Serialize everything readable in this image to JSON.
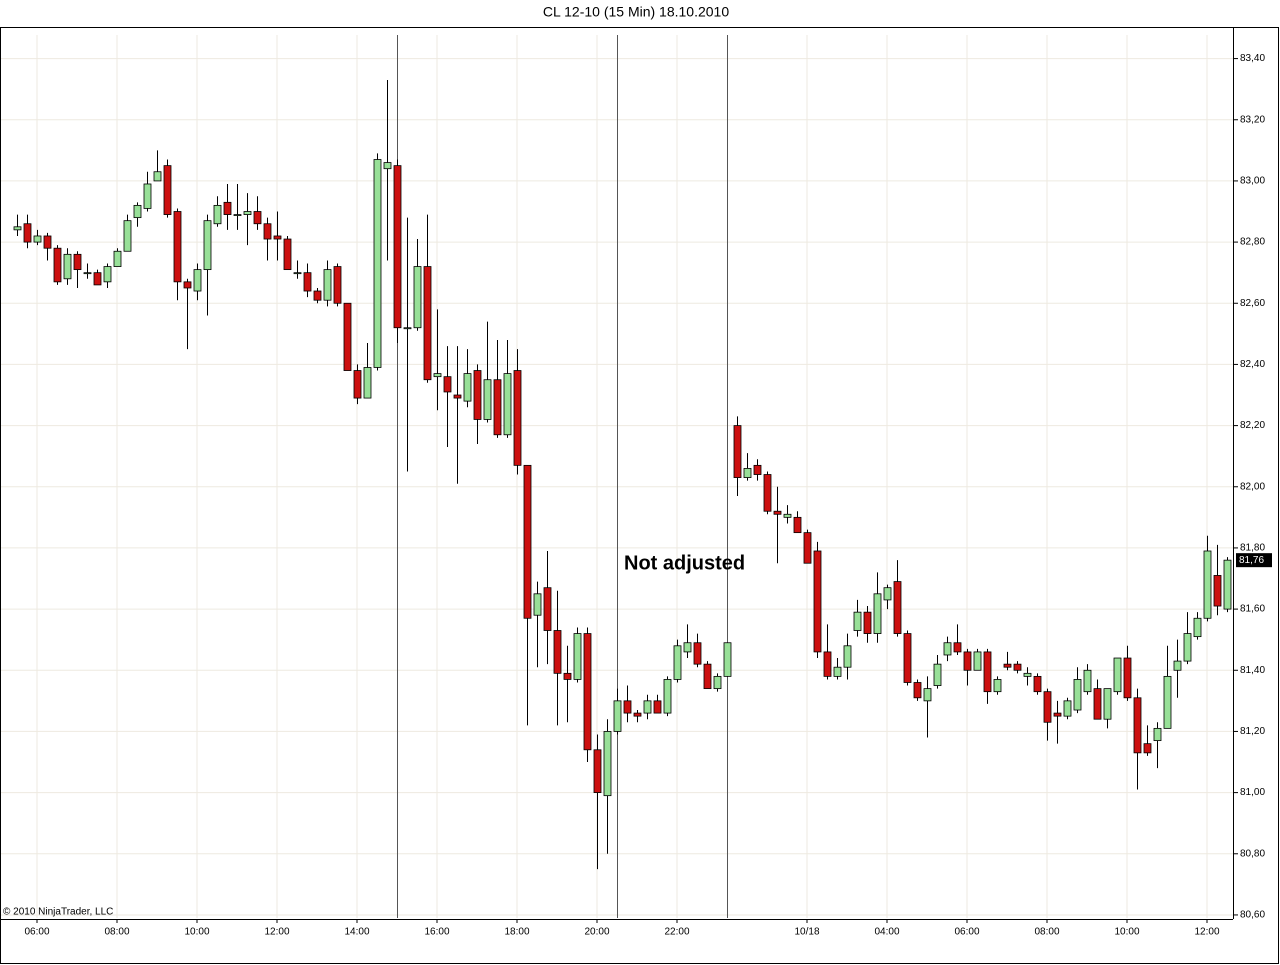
{
  "chart_data": {
    "type": "candlestick",
    "title": "CL 12-10 (15 Min)  18.10.2010",
    "annotation": "Not adjusted",
    "copyright": "© 2010 NinjaTrader, LLC",
    "up_color": "#98e098",
    "down_color": "#cc1010",
    "grid": true,
    "ylim": [
      80.59,
      83.5
    ],
    "yticks": [
      {
        "value": 80.6,
        "label": "80,60"
      },
      {
        "value": 80.8,
        "label": "80,80"
      },
      {
        "value": 81.0,
        "label": "81,00"
      },
      {
        "value": 81.2,
        "label": "81,20"
      },
      {
        "value": 81.4,
        "label": "81,40"
      },
      {
        "value": 81.6,
        "label": "81,60"
      },
      {
        "value": 81.8,
        "label": "81,80"
      },
      {
        "value": 82.0,
        "label": "82,00"
      },
      {
        "value": 82.2,
        "label": "82,20"
      },
      {
        "value": 82.4,
        "label": "82,40"
      },
      {
        "value": 82.6,
        "label": "82,60"
      },
      {
        "value": 82.8,
        "label": "82,80"
      },
      {
        "value": 83.0,
        "label": "83,00"
      },
      {
        "value": 83.2,
        "label": "83,20"
      },
      {
        "value": 83.4,
        "label": "83,40"
      }
    ],
    "last_price": {
      "value": 81.76,
      "label": "81,76"
    },
    "categories": [
      null,
      null,
      "06:00",
      null,
      null,
      null,
      null,
      null,
      null,
      null,
      "08:00",
      null,
      null,
      null,
      null,
      null,
      null,
      null,
      "10:00",
      null,
      null,
      null,
      null,
      null,
      null,
      null,
      "12:00",
      null,
      null,
      null,
      null,
      null,
      null,
      null,
      "14:00",
      null,
      null,
      null,
      null,
      null,
      null,
      null,
      "16:00",
      null,
      null,
      null,
      null,
      null,
      null,
      null,
      "18:00",
      null,
      null,
      null,
      null,
      null,
      null,
      null,
      "20:00",
      null,
      null,
      null,
      null,
      null,
      null,
      null,
      "22:00",
      null,
      null,
      null,
      null,
      null,
      null,
      null,
      null,
      null,
      null,
      null,
      null,
      "10/18",
      null,
      null,
      null,
      null,
      null,
      null,
      null,
      "04:00",
      null,
      null,
      null,
      null,
      null,
      null,
      null,
      "06:00",
      null,
      null,
      null,
      null,
      null,
      null,
      null,
      "08:00",
      null,
      null,
      null,
      null,
      null,
      null,
      null,
      "10:00",
      null,
      null,
      null,
      null,
      null,
      null,
      null,
      "12:00",
      null,
      null
    ],
    "open": [
      82.84,
      82.86,
      82.8,
      82.82,
      82.78,
      82.68,
      82.76,
      82.7,
      82.7,
      82.67,
      82.72,
      82.77,
      82.88,
      82.91,
      83.0,
      83.05,
      82.9,
      82.67,
      82.64,
      82.71,
      82.86,
      82.93,
      82.89,
      82.89,
      82.9,
      82.86,
      82.82,
      82.81,
      82.7,
      82.7,
      82.64,
      82.61,
      82.72,
      82.6,
      82.38,
      82.29,
      82.39,
      83.04,
      83.05,
      82.52,
      82.52,
      82.72,
      82.36,
      82.36,
      82.3,
      82.28,
      82.38,
      82.22,
      82.35,
      82.17,
      82.38,
      82.07,
      81.58,
      81.67,
      81.53,
      81.39,
      81.37,
      81.52,
      81.14,
      80.99,
      81.2,
      81.3,
      81.26,
      81.26,
      81.3,
      81.26,
      81.37,
      81.46,
      81.49,
      81.42,
      81.34,
      81.38,
      82.2,
      82.03,
      82.07,
      82.04,
      81.92,
      81.9,
      81.9,
      81.85,
      81.79,
      81.46,
      81.38,
      81.41,
      81.53,
      81.59,
      81.52,
      81.63,
      81.69,
      81.52,
      81.36,
      81.3,
      81.35,
      81.45,
      81.49,
      81.46,
      81.4,
      81.46,
      81.33,
      81.42,
      81.42,
      81.38,
      81.38,
      81.33,
      81.26,
      81.25,
      81.27,
      81.33,
      81.34,
      81.24,
      81.33,
      81.44,
      81.31,
      81.16,
      81.17,
      81.21,
      81.4,
      81.43,
      81.51,
      81.57,
      81.71,
      81.6
    ],
    "high": [
      82.89,
      82.89,
      82.84,
      82.83,
      82.79,
      82.78,
      82.77,
      82.73,
      82.71,
      82.73,
      82.78,
      82.89,
      82.93,
      83.03,
      83.1,
      83.07,
      82.91,
      82.68,
      82.73,
      82.89,
      82.95,
      82.99,
      82.99,
      82.96,
      82.95,
      82.88,
      82.9,
      82.82,
      82.74,
      82.73,
      82.65,
      82.74,
      82.73,
      82.6,
      82.4,
      82.47,
      83.09,
      83.33,
      83.07,
      82.88,
      82.81,
      82.89,
      82.58,
      82.46,
      82.46,
      82.45,
      82.4,
      82.54,
      82.48,
      82.48,
      82.45,
      82.07,
      81.69,
      81.79,
      81.66,
      81.48,
      81.54,
      81.54,
      81.19,
      81.24,
      81.34,
      81.35,
      81.27,
      81.32,
      81.32,
      81.38,
      81.5,
      81.55,
      81.52,
      81.43,
      81.39,
      81.49,
      82.23,
      82.11,
      82.09,
      82.05,
      82.0,
      81.94,
      81.92,
      81.86,
      81.82,
      81.55,
      81.44,
      81.52,
      81.63,
      81.61,
      81.72,
      81.68,
      81.76,
      81.53,
      81.37,
      81.38,
      81.45,
      81.51,
      81.55,
      81.47,
      81.47,
      81.47,
      81.38,
      81.46,
      81.43,
      81.41,
      81.39,
      81.34,
      81.3,
      81.31,
      81.41,
      81.42,
      81.37,
      81.34,
      81.44,
      81.48,
      81.34,
      81.22,
      81.23,
      81.48,
      81.5,
      81.59,
      81.59,
      81.84,
      81.81,
      81.77
    ],
    "low": [
      82.82,
      82.78,
      82.79,
      82.74,
      82.66,
      82.66,
      82.65,
      82.68,
      82.66,
      82.65,
      82.72,
      82.77,
      82.85,
      82.9,
      83.0,
      82.88,
      82.61,
      82.45,
      82.61,
      82.56,
      82.85,
      82.84,
      82.84,
      82.79,
      82.84,
      82.74,
      82.74,
      82.71,
      82.68,
      82.62,
      82.6,
      82.59,
      82.59,
      82.38,
      82.27,
      82.29,
      82.38,
      82.74,
      82.47,
      82.05,
      82.51,
      82.34,
      82.25,
      82.13,
      82.01,
      82.26,
      82.14,
      82.21,
      82.16,
      82.16,
      82.04,
      81.22,
      81.41,
      81.42,
      81.22,
      81.23,
      81.36,
      81.1,
      80.75,
      80.8,
      81.19,
      81.23,
      81.23,
      81.24,
      81.26,
      81.25,
      81.36,
      81.44,
      81.41,
      81.34,
      81.33,
      81.38,
      81.97,
      82.02,
      82.02,
      81.91,
      81.75,
      81.88,
      81.85,
      81.75,
      81.44,
      81.37,
      81.37,
      81.37,
      81.51,
      81.49,
      81.49,
      81.6,
      81.51,
      81.35,
      81.3,
      81.18,
      81.34,
      81.43,
      81.45,
      81.35,
      81.4,
      81.29,
      81.32,
      81.4,
      81.39,
      81.35,
      81.32,
      81.17,
      81.16,
      81.24,
      81.26,
      81.32,
      81.24,
      81.21,
      81.32,
      81.3,
      81.01,
      81.12,
      81.08,
      81.21,
      81.31,
      81.42,
      81.5,
      81.56,
      81.58,
      81.59
    ],
    "close": [
      82.85,
      82.8,
      82.82,
      82.78,
      82.67,
      82.76,
      82.71,
      82.7,
      82.66,
      82.72,
      82.77,
      82.87,
      82.92,
      82.99,
      83.03,
      82.89,
      82.67,
      82.65,
      82.71,
      82.87,
      82.92,
      82.89,
      82.89,
      82.9,
      82.86,
      82.81,
      82.81,
      82.71,
      82.7,
      82.64,
      82.61,
      82.71,
      82.6,
      82.38,
      82.29,
      82.39,
      83.07,
      83.06,
      82.52,
      82.52,
      82.72,
      82.35,
      82.37,
      82.31,
      82.29,
      82.37,
      82.22,
      82.35,
      82.17,
      82.37,
      82.07,
      81.57,
      81.65,
      81.53,
      81.39,
      81.37,
      81.52,
      81.14,
      81.0,
      81.2,
      81.3,
      81.26,
      81.25,
      81.3,
      81.26,
      81.37,
      81.48,
      81.49,
      81.42,
      81.34,
      81.38,
      81.49,
      82.03,
      82.06,
      82.04,
      81.92,
      81.91,
      81.91,
      81.85,
      81.75,
      81.46,
      81.38,
      81.41,
      81.48,
      81.59,
      81.52,
      81.65,
      81.67,
      81.52,
      81.36,
      81.31,
      81.34,
      81.42,
      81.49,
      81.46,
      81.4,
      81.46,
      81.33,
      81.37,
      81.41,
      81.4,
      81.39,
      81.33,
      81.23,
      81.25,
      81.3,
      81.37,
      81.4,
      81.24,
      81.34,
      81.44,
      81.31,
      81.13,
      81.13,
      81.21,
      81.38,
      81.43,
      81.52,
      81.57,
      81.79,
      81.61,
      81.76
    ]
  }
}
